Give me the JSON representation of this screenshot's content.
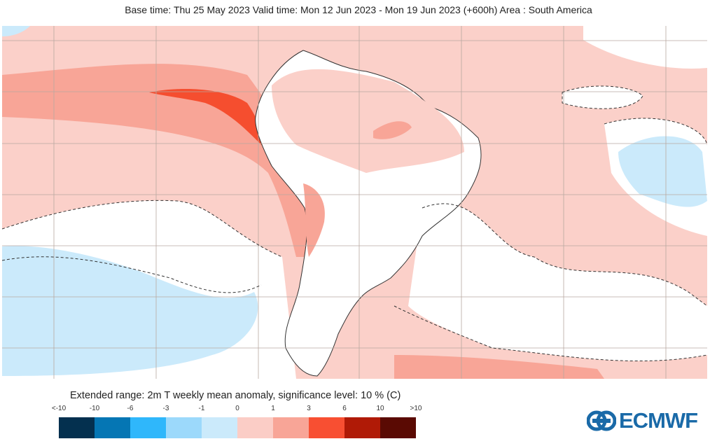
{
  "header": {
    "title": "Base time: Thu 25 May 2023 Valid time: Mon 12 Jun 2023 - Mon 19 Jun 2023 (+600h) Area : South America"
  },
  "map": {
    "region": "South America",
    "variable": "2m temperature weekly mean anomaly",
    "significance_contour": "dashed"
  },
  "legend": {
    "title": "Extended range: 2m T weekly mean anomaly, significance level: 10 % (C)",
    "ticks": [
      "<-10",
      "-10",
      "-6",
      "-3",
      "-1",
      "0",
      "1",
      "3",
      "6",
      "10",
      ">10"
    ],
    "colors": [
      "#04304f",
      "#0576b4",
      "#2fb7fb",
      "#9cd9fb",
      "#cbeafb",
      "#fbcdc6",
      "#f8a597",
      "#f84f32",
      "#b01a06",
      "#5a0a03"
    ]
  },
  "colors": {
    "ocean_base": "#fbd0c9",
    "strong_warm": "#f8a597",
    "very_warm": "#f54e2f",
    "cool": "#cbeafb",
    "land_neutral": "#ffffff"
  },
  "logo": {
    "text": "ECMWF"
  }
}
